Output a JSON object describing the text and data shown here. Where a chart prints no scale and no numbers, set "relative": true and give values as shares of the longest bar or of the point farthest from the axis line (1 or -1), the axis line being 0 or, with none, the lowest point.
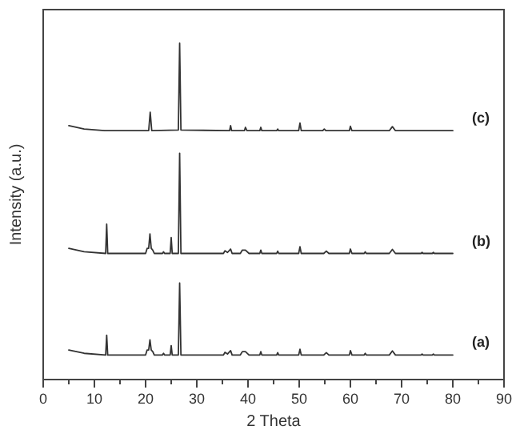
{
  "chart_data": {
    "type": "line",
    "xlabel": "2 Theta",
    "ylabel": "Intensity (a.u.)",
    "relative": true,
    "xlim": [
      0,
      90
    ],
    "xticks": [
      0,
      {
        "value": 5,
        "label": null
      },
      10,
      {
        "value": 15,
        "label": null
      },
      20,
      {
        "value": 25,
        "label": null
      },
      30,
      {
        "value": 35,
        "label": null
      },
      40,
      {
        "value": 45,
        "label": null
      },
      50,
      {
        "value": 55,
        "label": null
      },
      60,
      {
        "value": 65,
        "label": null
      },
      70,
      {
        "value": 75,
        "label": null
      },
      80,
      {
        "value": 85,
        "label": null
      },
      90
    ],
    "grid": false,
    "marker": "none",
    "line_style": "solid",
    "series": [
      {
        "name": "(a)",
        "color": "#333333",
        "x": [
          5,
          8,
          12.2,
          12.4,
          12.6,
          20,
          20.3,
          20.6,
          20.85,
          21.1,
          21.4,
          21.7,
          23.3,
          23.5,
          23.7,
          24.8,
          25,
          25.2,
          26.4,
          26.65,
          26.9,
          35.2,
          35.5,
          36,
          36.6,
          36.9,
          38.5,
          38.9,
          39.5,
          40.2,
          42.3,
          42.5,
          42.7,
          45.6,
          45.8,
          46,
          49.9,
          50.15,
          50.4,
          54.8,
          55.3,
          55.8,
          59.8,
          60,
          60.3,
          62.7,
          62.9,
          63.1,
          67.6,
          68.2,
          68.8,
          73.8,
          74,
          74.2,
          76,
          76.2,
          76.4,
          80
        ],
        "values": [
          0.088,
          0.078,
          0.073,
          0.132,
          0.073,
          0.073,
          0.088,
          0.088,
          0.118,
          0.088,
          0.083,
          0.073,
          0.073,
          0.078,
          0.073,
          0.073,
          0.101,
          0.073,
          0.073,
          0.287,
          0.073,
          0.073,
          0.081,
          0.076,
          0.086,
          0.073,
          0.073,
          0.083,
          0.083,
          0.073,
          0.073,
          0.083,
          0.073,
          0.073,
          0.08,
          0.073,
          0.073,
          0.09,
          0.073,
          0.073,
          0.08,
          0.073,
          0.073,
          0.086,
          0.073,
          0.073,
          0.078,
          0.073,
          0.073,
          0.085,
          0.073,
          0.073,
          0.076,
          0.073,
          0.073,
          0.076,
          0.073,
          0.073
        ]
      },
      {
        "name": "(b)",
        "color": "#333333",
        "x": [
          5,
          8,
          12.2,
          12.4,
          12.6,
          20,
          20.3,
          20.6,
          20.85,
          21.1,
          21.4,
          21.7,
          23.3,
          23.5,
          23.7,
          24.8,
          25,
          25.2,
          26.4,
          26.65,
          26.9,
          35.2,
          35.5,
          36,
          36.6,
          36.9,
          38.5,
          38.9,
          39.5,
          40.2,
          42.3,
          42.5,
          42.7,
          45.6,
          45.8,
          46,
          49.9,
          50.15,
          50.4,
          54.8,
          55.3,
          55.8,
          59.8,
          60,
          60.3,
          62.7,
          62.9,
          63.1,
          67.6,
          68.2,
          68.8,
          73.8,
          74,
          74.2,
          76,
          76.2,
          76.4,
          80
        ],
        "values": [
          0.39,
          0.38,
          0.375,
          0.462,
          0.375,
          0.375,
          0.39,
          0.39,
          0.433,
          0.39,
          0.385,
          0.375,
          0.375,
          0.38,
          0.375,
          0.375,
          0.422,
          0.375,
          0.375,
          0.673,
          0.375,
          0.375,
          0.383,
          0.378,
          0.388,
          0.375,
          0.375,
          0.385,
          0.385,
          0.375,
          0.375,
          0.385,
          0.375,
          0.375,
          0.382,
          0.375,
          0.375,
          0.395,
          0.375,
          0.375,
          0.382,
          0.375,
          0.375,
          0.388,
          0.375,
          0.375,
          0.38,
          0.375,
          0.375,
          0.387,
          0.375,
          0.375,
          0.378,
          0.375,
          0.375,
          0.378,
          0.375,
          0.375
        ]
      },
      {
        "name": "(c)",
        "color": "#333333",
        "x": [
          5,
          8,
          12,
          20.6,
          20.9,
          21.2,
          26.4,
          26.65,
          26.9,
          36.4,
          36.6,
          36.8,
          39.3,
          39.5,
          39.8,
          42.3,
          42.5,
          42.7,
          45.6,
          45.8,
          46,
          49.9,
          50.15,
          50.4,
          54.6,
          54.9,
          55.2,
          59.8,
          60,
          60.3,
          67.6,
          68.2,
          68.8,
          80
        ],
        "values": [
          0.755,
          0.745,
          0.74,
          0.74,
          0.795,
          0.74,
          0.742,
          1,
          0.742,
          0.74,
          0.755,
          0.74,
          0.74,
          0.75,
          0.74,
          0.74,
          0.75,
          0.74,
          0.74,
          0.745,
          0.74,
          0.74,
          0.763,
          0.74,
          0.74,
          0.745,
          0.74,
          0.74,
          0.753,
          0.74,
          0.74,
          0.752,
          0.74,
          0.74
        ]
      }
    ]
  }
}
